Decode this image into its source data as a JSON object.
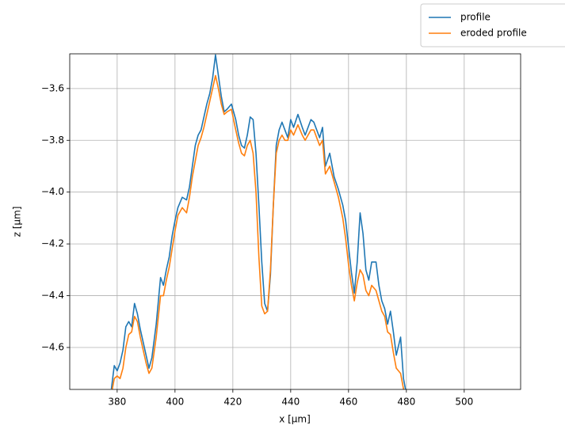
{
  "chart_data": {
    "type": "line",
    "xlabel": "x [µm]",
    "ylabel": "z [µm]",
    "x": [
      378,
      379,
      380,
      381,
      382,
      383,
      384,
      385,
      386,
      387,
      388,
      390,
      391,
      392,
      393.5,
      395,
      396,
      397,
      398,
      399,
      400,
      401,
      402.5,
      404,
      405,
      406,
      407,
      408,
      409,
      410,
      411,
      412,
      413,
      414,
      415,
      416,
      417,
      418,
      419.5,
      421,
      422,
      423,
      424,
      425,
      426,
      427,
      428,
      429,
      430,
      431,
      432,
      433,
      434,
      435,
      436,
      437,
      438,
      439,
      440,
      441,
      442.5,
      444,
      445,
      447,
      448,
      449,
      450,
      451,
      452,
      453.5,
      455,
      456.5,
      458,
      459,
      460,
      461,
      462,
      463,
      464,
      465,
      466,
      467,
      468,
      469.5,
      470.5,
      471.5,
      472.5,
      473.5,
      474.5,
      475.5,
      476.5,
      478,
      479,
      480
    ],
    "series": [
      {
        "name": "profile",
        "color": "#1f77b4",
        "values": [
          -4.76,
          -4.67,
          -4.69,
          -4.66,
          -4.61,
          -4.52,
          -4.5,
          -4.52,
          -4.43,
          -4.47,
          -4.53,
          -4.63,
          -4.68,
          -4.64,
          -4.51,
          -4.33,
          -4.36,
          -4.3,
          -4.25,
          -4.17,
          -4.11,
          -4.06,
          -4.02,
          -4.03,
          -3.98,
          -3.9,
          -3.82,
          -3.78,
          -3.76,
          -3.71,
          -3.66,
          -3.62,
          -3.56,
          -3.47,
          -3.55,
          -3.63,
          -3.69,
          -3.68,
          -3.66,
          -3.72,
          -3.78,
          -3.82,
          -3.83,
          -3.78,
          -3.71,
          -3.72,
          -3.85,
          -4.05,
          -4.27,
          -4.43,
          -4.46,
          -4.32,
          -4.05,
          -3.82,
          -3.76,
          -3.73,
          -3.76,
          -3.79,
          -3.72,
          -3.75,
          -3.7,
          -3.75,
          -3.78,
          -3.72,
          -3.73,
          -3.76,
          -3.79,
          -3.75,
          -3.9,
          -3.85,
          -3.94,
          -3.99,
          -4.05,
          -4.11,
          -4.21,
          -4.31,
          -4.39,
          -4.27,
          -4.08,
          -4.16,
          -4.3,
          -4.34,
          -4.27,
          -4.27,
          -4.36,
          -4.42,
          -4.45,
          -4.51,
          -4.46,
          -4.54,
          -4.63,
          -4.56,
          -4.72,
          -4.78
        ]
      },
      {
        "name": "eroded profile",
        "color": "#ff7f0e",
        "values": [
          -4.78,
          -4.72,
          -4.71,
          -4.72,
          -4.68,
          -4.6,
          -4.55,
          -4.54,
          -4.48,
          -4.5,
          -4.56,
          -4.66,
          -4.7,
          -4.68,
          -4.56,
          -4.4,
          -4.4,
          -4.34,
          -4.29,
          -4.22,
          -4.15,
          -4.09,
          -4.06,
          -4.08,
          -4.02,
          -3.94,
          -3.88,
          -3.82,
          -3.79,
          -3.75,
          -3.7,
          -3.65,
          -3.6,
          -3.55,
          -3.6,
          -3.66,
          -3.7,
          -3.69,
          -3.68,
          -3.76,
          -3.81,
          -3.85,
          -3.86,
          -3.82,
          -3.8,
          -3.85,
          -4.0,
          -4.25,
          -4.44,
          -4.47,
          -4.46,
          -4.3,
          -4.05,
          -3.85,
          -3.8,
          -3.78,
          -3.8,
          -3.8,
          -3.76,
          -3.78,
          -3.74,
          -3.78,
          -3.8,
          -3.76,
          -3.76,
          -3.79,
          -3.82,
          -3.8,
          -3.93,
          -3.9,
          -3.96,
          -4.02,
          -4.1,
          -4.18,
          -4.28,
          -4.36,
          -4.42,
          -4.35,
          -4.3,
          -4.32,
          -4.38,
          -4.4,
          -4.36,
          -4.38,
          -4.42,
          -4.46,
          -4.48,
          -4.54,
          -4.55,
          -4.62,
          -4.68,
          -4.7,
          -4.76,
          -4.8
        ]
      }
    ],
    "xlim": [
      363.6,
      519.5
    ],
    "xticks": [
      380,
      400,
      420,
      440,
      460,
      480,
      500
    ],
    "ylim": [
      -4.762,
      -3.466
    ],
    "yticks": [
      {
        "value": -4.6,
        "label": "−4.6"
      },
      {
        "value": -4.4,
        "label": "−4.4"
      },
      {
        "value": -4.2,
        "label": "−4.2"
      },
      {
        "value": -4.0,
        "label": "−4.0"
      },
      {
        "value": -3.8,
        "label": "−3.8"
      },
      {
        "value": -3.6,
        "label": "−3.6"
      }
    ],
    "grid": true,
    "legend": "upper right"
  }
}
